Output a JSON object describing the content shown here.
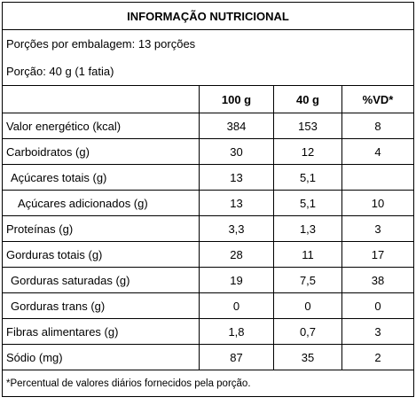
{
  "title": "INFORMAÇÃO NUTRICIONAL",
  "servings_per_package": "Porções por embalagem: 13 porções",
  "serving_size": "Porção: 40 g (1 fatia)",
  "columns": [
    "",
    "100 g",
    "40 g",
    "%VD*"
  ],
  "rows": [
    {
      "name": "Valor energético (kcal)",
      "per100": "384",
      "per_portion": "153",
      "vd": "8",
      "indent": 0
    },
    {
      "name": "Carboidratos (g)",
      "per100": "30",
      "per_portion": "12",
      "vd": "4",
      "indent": 0
    },
    {
      "name": "Açúcares totais (g)",
      "per100": "13",
      "per_portion": "5,1",
      "vd": "",
      "indent": 1
    },
    {
      "name": "Açúcares adicionados (g)",
      "per100": "13",
      "per_portion": "5,1",
      "vd": "10",
      "indent": 2
    },
    {
      "name": "Proteínas (g)",
      "per100": "3,3",
      "per_portion": "1,3",
      "vd": "3",
      "indent": 0
    },
    {
      "name": "Gorduras totais (g)",
      "per100": "28",
      "per_portion": "11",
      "vd": "17",
      "indent": 0
    },
    {
      "name": "Gorduras saturadas (g)",
      "per100": "19",
      "per_portion": "7,5",
      "vd": "38",
      "indent": 1
    },
    {
      "name": "Gorduras trans (g)",
      "per100": "0",
      "per_portion": "0",
      "vd": "0",
      "indent": 1
    },
    {
      "name": "Fibras alimentares (g)",
      "per100": "1,8",
      "per_portion": "0,7",
      "vd": "3",
      "indent": 0
    },
    {
      "name": "Sódio (mg)",
      "per100": "87",
      "per_portion": "35",
      "vd": "2",
      "indent": 0
    }
  ],
  "footnote": "*Percentual de valores diários fornecidos pela porção."
}
